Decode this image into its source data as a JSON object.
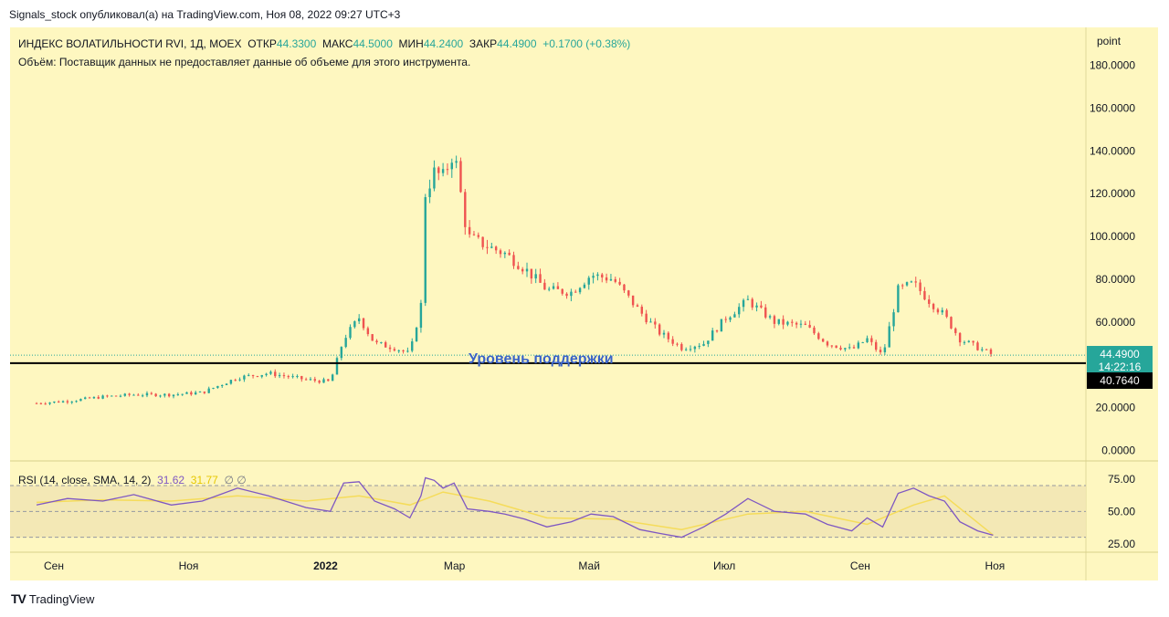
{
  "header": {
    "text": "Signals_stock опубликовал(а) на TradingView.com, Ноя 08, 2022 09:27 UTC+3"
  },
  "legend": {
    "title": "ИНДЕКС ВОЛАТИЛЬНОСТИ RVI, 1Д, MOEX",
    "open_label": "ОТКР",
    "open": "44.3300",
    "high_label": "МАКС",
    "high": "44.5000",
    "low_label": "МИН",
    "low": "44.2400",
    "close_label": "ЗАКР",
    "close": "44.4900",
    "change": "+0.1700 (+0.38%)",
    "volume_note": "Объём: Поставщик данных не предоставляет данные об объеме для этого инструмента."
  },
  "unit_label": "point",
  "price_badge": {
    "value": "44.4900",
    "countdown": "14:22:16",
    "color": "#26a69a"
  },
  "support_badge": {
    "value": "40.7640"
  },
  "support_label": "Уровень поддержки",
  "rsi_legend": {
    "label": "RSI (14, close, SMA, 14, 2)",
    "rsi": "31.62",
    "sma": "31.77",
    "extra": "∅ ∅"
  },
  "footer": {
    "brand": "TradingView"
  },
  "colors": {
    "up": "#26a69a",
    "down": "#ef5350",
    "rsi": "#7e57c2",
    "rsi_ma": "#f5dc5a",
    "background": "#fef7c0"
  },
  "chart_data": [
    {
      "type": "candlestick",
      "title": "ИНДЕКС ВОЛАТИЛЬНОСТИ RVI, 1Д, MOEX",
      "ylim": [
        -5,
        185
      ],
      "y_ticks": [
        0,
        20,
        60,
        80,
        100,
        120,
        140,
        160,
        180
      ],
      "y_tick_labels": [
        "0.0000",
        "20.0000",
        "60.0000",
        "80.0000",
        "100.0000",
        "120.0000",
        "140.0000",
        "160.0000",
        "180.0000"
      ],
      "x_labels": [
        "Сен",
        "Ноя",
        "2022",
        "Мар",
        "Май",
        "Июл",
        "Сен",
        "Ноя"
      ],
      "support_level": 40.764,
      "last_close": 44.49,
      "series": [
        {
          "name": "RVI",
          "points": [
            {
              "date": "2021-09-01",
              "close": 22
            },
            {
              "date": "2021-09-15",
              "close": 23
            },
            {
              "date": "2021-10-01",
              "close": 25
            },
            {
              "date": "2021-10-15",
              "close": 26
            },
            {
              "date": "2021-11-01",
              "close": 26
            },
            {
              "date": "2021-11-15",
              "close": 27
            },
            {
              "date": "2021-12-01",
              "close": 34
            },
            {
              "date": "2021-12-15",
              "close": 36
            },
            {
              "date": "2022-01-01",
              "close": 33
            },
            {
              "date": "2022-01-12",
              "close": 32
            },
            {
              "date": "2022-01-18",
              "close": 52
            },
            {
              "date": "2022-01-25",
              "close": 62
            },
            {
              "date": "2022-02-01",
              "close": 50
            },
            {
              "date": "2022-02-10",
              "close": 48
            },
            {
              "date": "2022-02-17",
              "close": 45
            },
            {
              "date": "2022-02-22",
              "close": 68
            },
            {
              "date": "2022-02-24",
              "close": 120
            },
            {
              "date": "2022-02-28",
              "close": 130
            },
            {
              "date": "2022-03-04",
              "close": 128
            },
            {
              "date": "2022-03-09",
              "close": 140
            },
            {
              "date": "2022-03-15",
              "close": 100
            },
            {
              "date": "2022-03-25",
              "close": 95
            },
            {
              "date": "2022-04-01",
              "close": 92
            },
            {
              "date": "2022-04-10",
              "close": 85
            },
            {
              "date": "2022-04-20",
              "close": 75
            },
            {
              "date": "2022-05-01",
              "close": 74
            },
            {
              "date": "2022-05-10",
              "close": 82
            },
            {
              "date": "2022-05-20",
              "close": 80
            },
            {
              "date": "2022-06-01",
              "close": 65
            },
            {
              "date": "2022-06-10",
              "close": 55
            },
            {
              "date": "2022-06-20",
              "close": 48
            },
            {
              "date": "2022-06-30",
              "close": 50
            },
            {
              "date": "2022-07-10",
              "close": 62
            },
            {
              "date": "2022-07-20",
              "close": 70
            },
            {
              "date": "2022-08-01",
              "close": 60
            },
            {
              "date": "2022-08-15",
              "close": 58
            },
            {
              "date": "2022-08-25",
              "close": 50
            },
            {
              "date": "2022-09-05",
              "close": 47
            },
            {
              "date": "2022-09-12",
              "close": 52
            },
            {
              "date": "2022-09-19",
              "close": 44
            },
            {
              "date": "2022-09-26",
              "close": 75
            },
            {
              "date": "2022-10-03",
              "close": 78
            },
            {
              "date": "2022-10-10",
              "close": 70
            },
            {
              "date": "2022-10-17",
              "close": 63
            },
            {
              "date": "2022-10-24",
              "close": 52
            },
            {
              "date": "2022-11-01",
              "close": 48
            },
            {
              "date": "2022-11-08",
              "close": 44.49
            }
          ]
        }
      ]
    },
    {
      "type": "line",
      "title": "RSI (14, close, SMA, 14, 2)",
      "ylim": [
        22,
        82
      ],
      "y_ticks": [
        25,
        50,
        75
      ],
      "y_tick_labels": [
        "25.00",
        "50.00",
        "75.00"
      ],
      "series": [
        {
          "name": "RSI",
          "points": [
            {
              "date": "2021-09-01",
              "value": 55
            },
            {
              "date": "2021-09-15",
              "value": 60
            },
            {
              "date": "2021-10-01",
              "value": 58
            },
            {
              "date": "2021-10-15",
              "value": 63
            },
            {
              "date": "2021-11-01",
              "value": 55
            },
            {
              "date": "2021-11-15",
              "value": 58
            },
            {
              "date": "2021-12-01",
              "value": 68
            },
            {
              "date": "2021-12-15",
              "value": 62
            },
            {
              "date": "2022-01-01",
              "value": 53
            },
            {
              "date": "2022-01-12",
              "value": 50
            },
            {
              "date": "2022-01-18",
              "value": 72
            },
            {
              "date": "2022-01-25",
              "value": 73
            },
            {
              "date": "2022-02-01",
              "value": 58
            },
            {
              "date": "2022-02-10",
              "value": 52
            },
            {
              "date": "2022-02-17",
              "value": 45
            },
            {
              "date": "2022-02-22",
              "value": 62
            },
            {
              "date": "2022-02-24",
              "value": 76
            },
            {
              "date": "2022-02-28",
              "value": 74
            },
            {
              "date": "2022-03-04",
              "value": 68
            },
            {
              "date": "2022-03-09",
              "value": 72
            },
            {
              "date": "2022-03-15",
              "value": 52
            },
            {
              "date": "2022-03-25",
              "value": 50
            },
            {
              "date": "2022-04-01",
              "value": 48
            },
            {
              "date": "2022-04-10",
              "value": 44
            },
            {
              "date": "2022-04-20",
              "value": 38
            },
            {
              "date": "2022-05-01",
              "value": 42
            },
            {
              "date": "2022-05-10",
              "value": 48
            },
            {
              "date": "2022-05-20",
              "value": 46
            },
            {
              "date": "2022-06-01",
              "value": 36
            },
            {
              "date": "2022-06-10",
              "value": 33
            },
            {
              "date": "2022-06-20",
              "value": 30
            },
            {
              "date": "2022-06-30",
              "value": 38
            },
            {
              "date": "2022-07-10",
              "value": 48
            },
            {
              "date": "2022-07-20",
              "value": 60
            },
            {
              "date": "2022-08-01",
              "value": 50
            },
            {
              "date": "2022-08-15",
              "value": 48
            },
            {
              "date": "2022-08-25",
              "value": 40
            },
            {
              "date": "2022-09-05",
              "value": 35
            },
            {
              "date": "2022-09-12",
              "value": 45
            },
            {
              "date": "2022-09-19",
              "value": 38
            },
            {
              "date": "2022-09-26",
              "value": 64
            },
            {
              "date": "2022-10-03",
              "value": 68
            },
            {
              "date": "2022-10-10",
              "value": 62
            },
            {
              "date": "2022-10-17",
              "value": 58
            },
            {
              "date": "2022-10-24",
              "value": 42
            },
            {
              "date": "2022-11-01",
              "value": 35
            },
            {
              "date": "2022-11-08",
              "value": 31.62
            }
          ]
        },
        {
          "name": "SMA",
          "points": [
            {
              "date": "2021-09-01",
              "value": 57
            },
            {
              "date": "2021-10-01",
              "value": 59
            },
            {
              "date": "2021-11-01",
              "value": 58
            },
            {
              "date": "2021-12-01",
              "value": 62
            },
            {
              "date": "2022-01-01",
              "value": 58
            },
            {
              "date": "2022-01-25",
              "value": 62
            },
            {
              "date": "2022-02-17",
              "value": 55
            },
            {
              "date": "2022-03-04",
              "value": 65
            },
            {
              "date": "2022-03-25",
              "value": 58
            },
            {
              "date": "2022-04-20",
              "value": 45
            },
            {
              "date": "2022-05-20",
              "value": 44
            },
            {
              "date": "2022-06-20",
              "value": 36
            },
            {
              "date": "2022-07-20",
              "value": 48
            },
            {
              "date": "2022-08-15",
              "value": 50
            },
            {
              "date": "2022-09-12",
              "value": 40
            },
            {
              "date": "2022-10-03",
              "value": 55
            },
            {
              "date": "2022-10-17",
              "value": 62
            },
            {
              "date": "2022-11-08",
              "value": 31.77
            }
          ]
        }
      ]
    }
  ]
}
